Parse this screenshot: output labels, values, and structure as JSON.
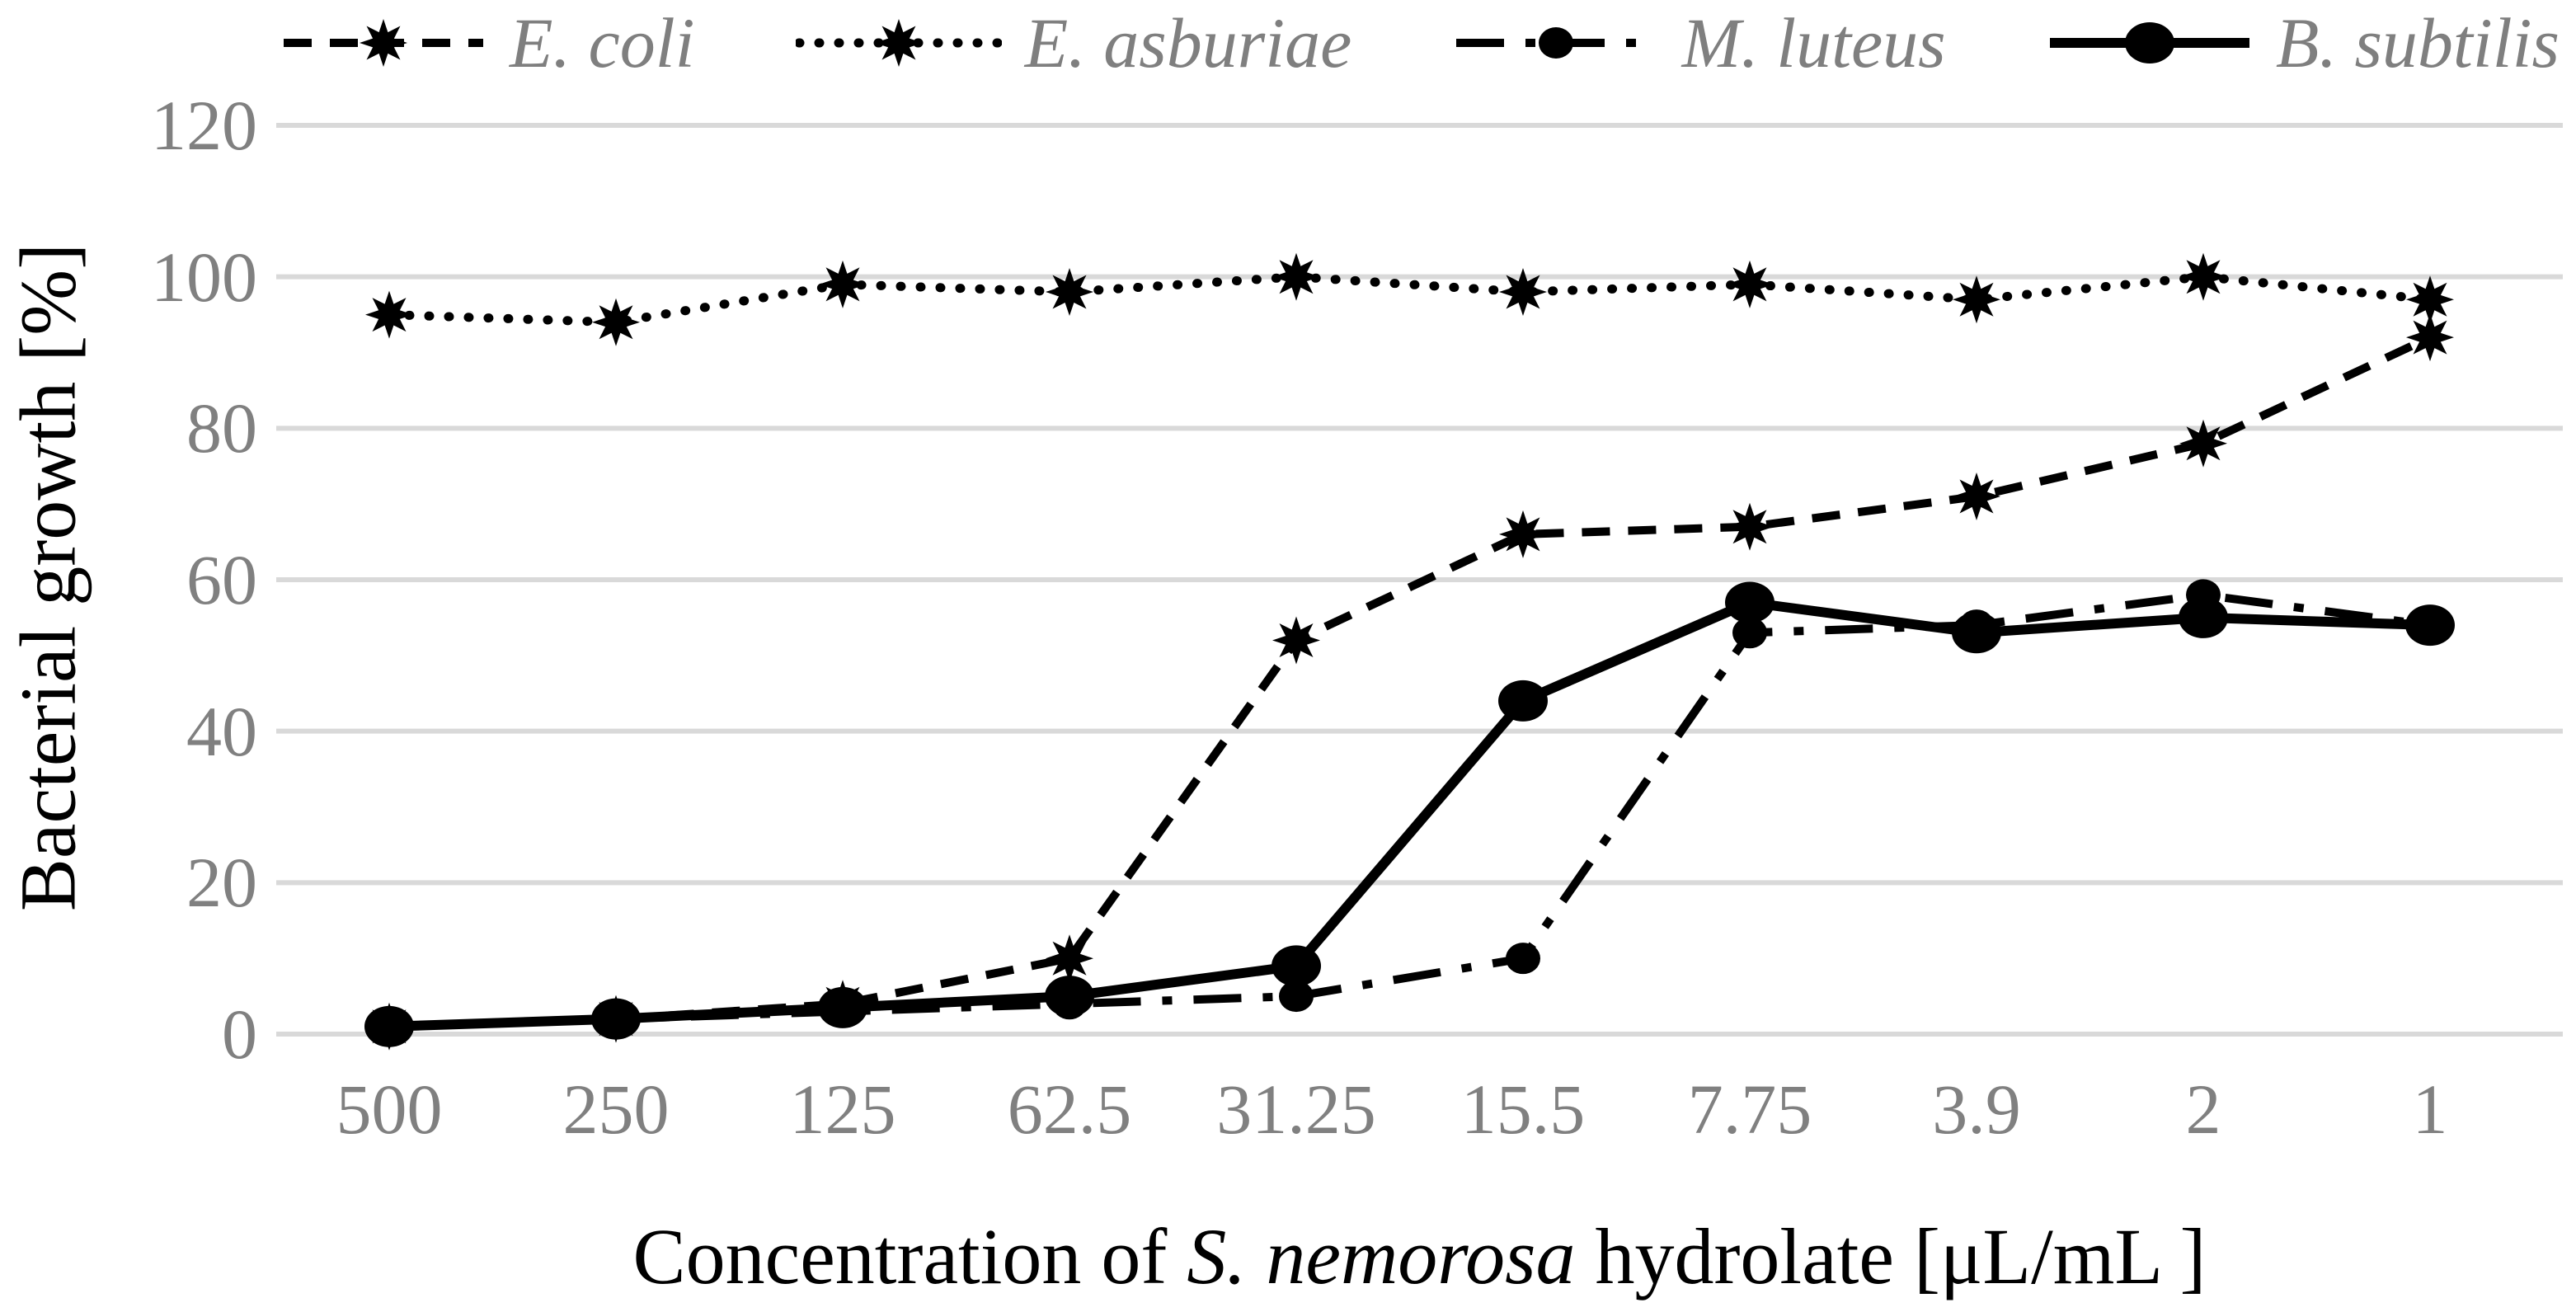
{
  "chart_data": {
    "type": "line",
    "title": "",
    "xlabel": "Concentration of S. nemorosa hydrolate [μL/mL ]",
    "xlabel_parts": {
      "prefix": "Concentration of ",
      "italic": "S. nemorosa",
      "suffix": " hydrolate [μL/mL ]"
    },
    "ylabel": "Bacterial growth [%]",
    "categories": [
      "500",
      "250",
      "125",
      "62.5",
      "31.25",
      "15.5",
      "7.75",
      "3.9",
      "2",
      "1"
    ],
    "ylim": [
      0,
      120
    ],
    "ytick_step": 20,
    "grid": true,
    "legend_position": "top",
    "series": [
      {
        "name": "E. coli",
        "line": "dashed",
        "marker": "star",
        "values": [
          1,
          2,
          4,
          10,
          52,
          66,
          67,
          71,
          78,
          92
        ]
      },
      {
        "name": "E. asburiae",
        "line": "dotted",
        "marker": "star",
        "values": [
          95,
          94,
          99,
          98,
          100,
          98,
          99,
          97,
          100,
          97
        ]
      },
      {
        "name": "M. luteus",
        "line": "dashdot",
        "marker": "circle-small",
        "values": [
          1,
          2,
          3,
          4,
          5,
          10,
          53,
          54,
          58,
          54
        ]
      },
      {
        "name": "B. subtilis",
        "line": "solid",
        "marker": "circle",
        "values": [
          1,
          2,
          3.5,
          5,
          9,
          44,
          57,
          53,
          55,
          54
        ]
      }
    ],
    "colors": {
      "series": "#000000",
      "grid": "#d9d9d9",
      "tick_labels": "#808080",
      "legend_text": "#7f7f7f",
      "axis_title": "#000000"
    }
  }
}
